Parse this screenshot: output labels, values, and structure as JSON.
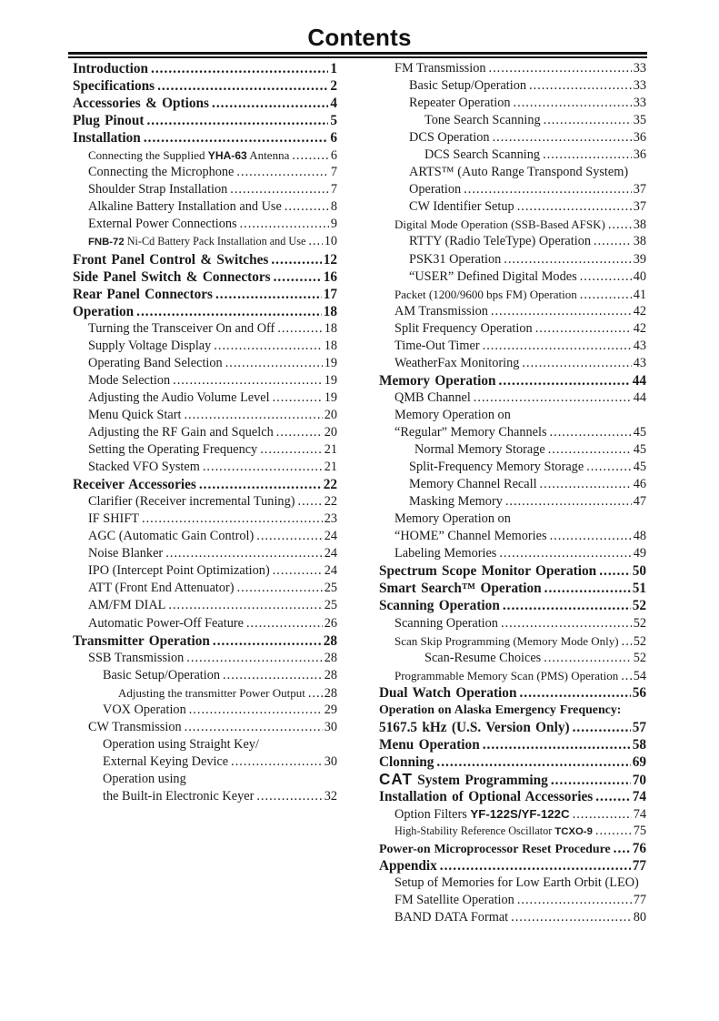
{
  "colors": {
    "text": "#1a1a1a",
    "background": "#ffffff",
    "rule": "#141414"
  },
  "toc": {
    "title": "Contents",
    "columns": [
      {
        "side": "left",
        "items": [
          {
            "level": 0,
            "bold": true,
            "page": "1",
            "segments": [
              {
                "t": "Introduction"
              }
            ]
          },
          {
            "level": 0,
            "bold": true,
            "page": "2",
            "segments": [
              {
                "t": "Specifications"
              }
            ]
          },
          {
            "level": 0,
            "bold": true,
            "page": "4",
            "segments": [
              {
                "t": "Accessories & Options"
              }
            ]
          },
          {
            "level": 0,
            "bold": true,
            "page": "5",
            "segments": [
              {
                "t": "Plug Pinout"
              }
            ]
          },
          {
            "level": 0,
            "bold": true,
            "page": "6",
            "segments": [
              {
                "t": "Installation"
              }
            ]
          },
          {
            "level": 1,
            "page": "6",
            "fit": 1,
            "segments": [
              {
                "t": "Connecting the Supplied "
              },
              {
                "t": "YHA-63",
                "s": "model"
              },
              {
                "t": " Antenna"
              }
            ]
          },
          {
            "level": 1,
            "page": "7",
            "segments": [
              {
                "t": "Connecting the Microphone"
              }
            ]
          },
          {
            "level": 1,
            "page": "7",
            "segments": [
              {
                "t": "Shoulder Strap Installation"
              }
            ]
          },
          {
            "level": 1,
            "page": "8",
            "segments": [
              {
                "t": "Alkaline Battery Installation and Use"
              }
            ]
          },
          {
            "level": 1,
            "page": "9",
            "segments": [
              {
                "t": "External Power Connections"
              }
            ]
          },
          {
            "level": 1,
            "page": "10",
            "fit": 2,
            "segments": [
              {
                "t": "FNB-72",
                "s": "model"
              },
              {
                "t": " Ni-Cd Battery Pack Installation and Use"
              }
            ]
          },
          {
            "level": 0,
            "bold": true,
            "page": "12",
            "segments": [
              {
                "t": "Front Panel Control & Switches"
              }
            ]
          },
          {
            "level": 0,
            "bold": true,
            "page": "16",
            "segments": [
              {
                "t": "Side Panel Switch & Connectors"
              }
            ]
          },
          {
            "level": 0,
            "bold": true,
            "page": "17",
            "segments": [
              {
                "t": "Rear Panel Connectors"
              }
            ]
          },
          {
            "level": 0,
            "bold": true,
            "page": "18",
            "segments": [
              {
                "t": "Operation"
              }
            ]
          },
          {
            "level": 1,
            "page": "18",
            "segments": [
              {
                "t": "Turning the Transceiver On and Off"
              }
            ]
          },
          {
            "level": 1,
            "page": "18",
            "segments": [
              {
                "t": "Supply Voltage Display"
              }
            ]
          },
          {
            "level": 1,
            "page": "19",
            "segments": [
              {
                "t": "Operating Band Selection"
              }
            ]
          },
          {
            "level": 1,
            "page": "19",
            "segments": [
              {
                "t": "Mode Selection"
              }
            ]
          },
          {
            "level": 1,
            "page": "19",
            "segments": [
              {
                "t": "Adjusting the Audio Volume Level"
              }
            ]
          },
          {
            "level": 1,
            "page": "20",
            "segments": [
              {
                "t": "Menu Quick Start"
              }
            ]
          },
          {
            "level": 1,
            "page": "20",
            "segments": [
              {
                "t": "Adjusting the RF Gain and Squelch"
              }
            ]
          },
          {
            "level": 1,
            "page": "21",
            "segments": [
              {
                "t": "Setting the Operating Frequency"
              }
            ]
          },
          {
            "level": 1,
            "page": "21",
            "segments": [
              {
                "t": "Stacked VFO System"
              }
            ]
          },
          {
            "level": 0,
            "bold": true,
            "page": "22",
            "segments": [
              {
                "t": "Receiver Accessories"
              }
            ]
          },
          {
            "level": 1,
            "page": "22",
            "segments": [
              {
                "t": "Clarifier (Receiver incremental Tuning)"
              }
            ]
          },
          {
            "level": 1,
            "page": "23",
            "segments": [
              {
                "t": "IF SHIFT"
              }
            ]
          },
          {
            "level": 1,
            "page": "24",
            "segments": [
              {
                "t": "AGC (Automatic Gain Control)"
              }
            ]
          },
          {
            "level": 1,
            "page": "24",
            "segments": [
              {
                "t": "Noise Blanker"
              }
            ]
          },
          {
            "level": 1,
            "page": "24",
            "segments": [
              {
                "t": "IPO (Intercept Point Optimization)"
              }
            ]
          },
          {
            "level": 1,
            "page": "25",
            "segments": [
              {
                "t": "ATT (Front End Attenuator)"
              }
            ]
          },
          {
            "level": 1,
            "page": "25",
            "segments": [
              {
                "t": "AM/FM DIAL"
              }
            ]
          },
          {
            "level": 1,
            "page": "26",
            "segments": [
              {
                "t": "Automatic Power-Off Feature"
              }
            ]
          },
          {
            "level": 0,
            "bold": true,
            "page": "28",
            "segments": [
              {
                "t": "Transmitter Operation"
              }
            ]
          },
          {
            "level": 1,
            "page": "28",
            "segments": [
              {
                "t": "SSB Transmission"
              }
            ]
          },
          {
            "level": 2,
            "page": "28",
            "segments": [
              {
                "t": "Basic Setup/Operation"
              }
            ]
          },
          {
            "level": 3,
            "page": "28",
            "fit": 1,
            "segments": [
              {
                "t": "Adjusting the transmitter Power Output"
              }
            ]
          },
          {
            "level": 2,
            "page": "29",
            "segments": [
              {
                "t": "VOX Operation"
              }
            ]
          },
          {
            "level": 1,
            "page": "30",
            "segments": [
              {
                "t": "CW Transmission"
              }
            ]
          },
          {
            "level": 2,
            "page": null,
            "segments": [
              {
                "t": "Operation using Straight Key/"
              }
            ]
          },
          {
            "level": 2,
            "page": "30",
            "segments": [
              {
                "t": "External Keying Device"
              }
            ]
          },
          {
            "level": 2,
            "page": null,
            "segments": [
              {
                "t": "Operation using"
              }
            ]
          },
          {
            "level": 2,
            "page": "32",
            "segments": [
              {
                "t": "the Built-in Electronic Keyer"
              }
            ]
          }
        ]
      },
      {
        "side": "right",
        "items": [
          {
            "level": 1,
            "page": "33",
            "segments": [
              {
                "t": "FM Transmission"
              }
            ]
          },
          {
            "level": 2,
            "page": "33",
            "segments": [
              {
                "t": "Basic Setup/Operation"
              }
            ]
          },
          {
            "level": 2,
            "page": "33",
            "segments": [
              {
                "t": "Repeater Operation"
              }
            ]
          },
          {
            "level": 3,
            "page": "35",
            "segments": [
              {
                "t": "Tone Search Scanning"
              }
            ]
          },
          {
            "level": 2,
            "page": "36",
            "segments": [
              {
                "t": "DCS Operation"
              }
            ]
          },
          {
            "level": 3,
            "page": "36",
            "segments": [
              {
                "t": "DCS Search Scanning"
              }
            ]
          },
          {
            "level": 2,
            "page": null,
            "segments": [
              {
                "t": "ARTS™ (Auto Range Transpond System)"
              }
            ]
          },
          {
            "level": 2,
            "page": "37",
            "segments": [
              {
                "t": "Operation"
              }
            ]
          },
          {
            "level": 2,
            "page": "37",
            "segments": [
              {
                "t": "CW Identifier Setup"
              }
            ]
          },
          {
            "level": 1,
            "page": "38",
            "fit": 1,
            "segments": [
              {
                "t": "Digital Mode Operation (SSB-Based AFSK)"
              }
            ]
          },
          {
            "level": 2,
            "page": "38",
            "segments": [
              {
                "t": "RTTY (Radio TeleType) Operation"
              }
            ]
          },
          {
            "level": 2,
            "page": "39",
            "segments": [
              {
                "t": "PSK31 Operation"
              }
            ]
          },
          {
            "level": 2,
            "page": "40",
            "segments": [
              {
                "t": "“USER” Defined Digital Modes"
              }
            ]
          },
          {
            "level": 1,
            "page": "41",
            "fit": 1,
            "segments": [
              {
                "t": "Packet (1200/9600 bps FM) Operation"
              }
            ]
          },
          {
            "level": 1,
            "page": "42",
            "segments": [
              {
                "t": "AM Transmission"
              }
            ]
          },
          {
            "level": 1,
            "page": "42",
            "segments": [
              {
                "t": "Split Frequency Operation"
              }
            ]
          },
          {
            "level": 1,
            "page": "43",
            "segments": [
              {
                "t": "Time-Out Timer"
              }
            ]
          },
          {
            "level": 1,
            "page": "43",
            "segments": [
              {
                "t": "WeatherFax Monitoring"
              }
            ]
          },
          {
            "level": 0,
            "bold": true,
            "page": "44",
            "segments": [
              {
                "t": "Memory Operation"
              }
            ]
          },
          {
            "level": 1,
            "page": "44",
            "segments": [
              {
                "t": "QMB Channel"
              }
            ]
          },
          {
            "level": 1,
            "page": null,
            "segments": [
              {
                "t": "Memory Operation on"
              }
            ]
          },
          {
            "level": 1,
            "page": "45",
            "segments": [
              {
                "t": "“Regular” Memory Channels"
              }
            ]
          },
          {
            "level": 2,
            "page": "45",
            "pad": 6,
            "segments": [
              {
                "t": "Normal Memory Storage"
              }
            ]
          },
          {
            "level": 2,
            "page": "45",
            "segments": [
              {
                "t": "Split-Frequency Memory Storage"
              }
            ]
          },
          {
            "level": 2,
            "page": "46",
            "segments": [
              {
                "t": "Memory Channel Recall"
              }
            ]
          },
          {
            "level": 2,
            "page": "47",
            "segments": [
              {
                "t": "Masking Memory"
              }
            ]
          },
          {
            "level": 1,
            "page": null,
            "segments": [
              {
                "t": "Memory Operation on"
              }
            ]
          },
          {
            "level": 1,
            "page": "48",
            "segments": [
              {
                "t": "“HOME” Channel Memories"
              }
            ]
          },
          {
            "level": 1,
            "page": "49",
            "segments": [
              {
                "t": "Labeling Memories"
              }
            ]
          },
          {
            "level": 0,
            "bold": true,
            "page": "50",
            "segments": [
              {
                "t": "Spectrum Scope Monitor Operation"
              }
            ]
          },
          {
            "level": 0,
            "bold": true,
            "page": "51",
            "segments": [
              {
                "t": "Smart Search™ Operation"
              }
            ]
          },
          {
            "level": 0,
            "bold": true,
            "page": "52",
            "segments": [
              {
                "t": "Scanning Operation"
              }
            ]
          },
          {
            "level": 1,
            "page": "52",
            "segments": [
              {
                "t": "Scanning Operation"
              }
            ]
          },
          {
            "level": 1,
            "page": "52",
            "fit": 1,
            "segments": [
              {
                "t": "Scan Skip Programming (Memory Mode Only)"
              }
            ]
          },
          {
            "level": 3,
            "page": "52",
            "segments": [
              {
                "t": "Scan-Resume Choices"
              }
            ]
          },
          {
            "level": 1,
            "page": "54",
            "fit": 1,
            "segments": [
              {
                "t": "Programmable Memory Scan (PMS) Operation"
              }
            ]
          },
          {
            "level": 0,
            "bold": true,
            "page": "56",
            "segments": [
              {
                "t": "Dual Watch Operation"
              }
            ]
          },
          {
            "level": 0,
            "bold": true,
            "page": null,
            "fit": 1,
            "segments": [
              {
                "t": "Operation on Alaska Emergency Frequency:"
              }
            ]
          },
          {
            "level": 0,
            "bold": true,
            "page": "57",
            "segments": [
              {
                "t": "5167.5 kHz (U.S. Version Only)"
              }
            ]
          },
          {
            "level": 0,
            "bold": true,
            "page": "58",
            "segments": [
              {
                "t": "Menu Operation"
              }
            ]
          },
          {
            "level": 0,
            "bold": true,
            "page": "69",
            "segments": [
              {
                "t": "Clonning"
              }
            ]
          },
          {
            "level": 0,
            "bold": true,
            "page": "70",
            "segments": [
              {
                "t": "CAT",
                "s": "cat"
              },
              {
                "t": " System Programming"
              }
            ]
          },
          {
            "level": 0,
            "bold": true,
            "page": "74",
            "segments": [
              {
                "t": "Installation of Optional Accessories"
              }
            ]
          },
          {
            "level": 1,
            "page": "74",
            "segments": [
              {
                "t": "Option Filters "
              },
              {
                "t": "YF-122S/YF-122C",
                "s": "model"
              }
            ]
          },
          {
            "level": 1,
            "page": "75",
            "fit": 2,
            "segments": [
              {
                "t": "High-Stability Reference Oscillator "
              },
              {
                "t": "TCXO-9",
                "s": "model"
              }
            ]
          },
          {
            "level": 0,
            "bold": true,
            "page": "76",
            "fit": 1,
            "segments": [
              {
                "t": "Power-on Microprocessor Reset Procedure"
              }
            ]
          },
          {
            "level": 0,
            "bold": true,
            "page": "77",
            "segments": [
              {
                "t": "Appendix"
              }
            ]
          },
          {
            "level": 1,
            "page": null,
            "segments": [
              {
                "t": "Setup of Memories for Low Earth Orbit (LEO)"
              }
            ]
          },
          {
            "level": 1,
            "page": "77",
            "segments": [
              {
                "t": "FM Satellite Operation"
              }
            ]
          },
          {
            "level": 1,
            "page": "80",
            "segments": [
              {
                "t": "BAND DATA Format"
              }
            ]
          }
        ]
      }
    ]
  }
}
